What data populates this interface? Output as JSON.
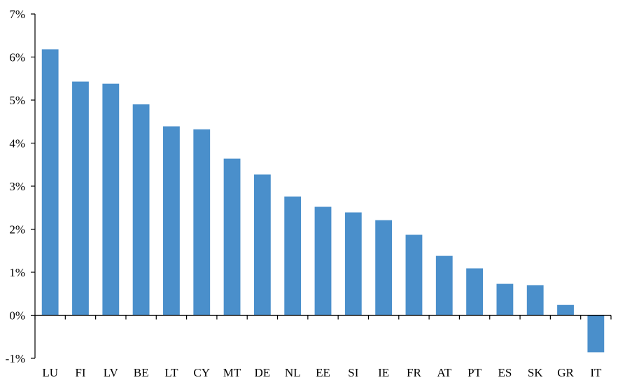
{
  "chart_data": {
    "type": "bar",
    "title": "",
    "xlabel": "",
    "ylabel": "",
    "categories": [
      "LU",
      "FI",
      "LV",
      "BE",
      "LT",
      "CY",
      "MT",
      "DE",
      "NL",
      "EE",
      "SI",
      "IE",
      "FR",
      "AT",
      "PT",
      "ES",
      "SK",
      "GR",
      "IT"
    ],
    "values": [
      6.18,
      5.43,
      5.38,
      4.9,
      4.39,
      4.32,
      3.64,
      3.27,
      2.76,
      2.52,
      2.39,
      2.21,
      1.87,
      1.38,
      1.09,
      0.73,
      0.7,
      0.24,
      -0.86
    ],
    "ylim": [
      -1,
      7
    ],
    "yticks": [
      -1,
      0,
      1,
      2,
      3,
      4,
      5,
      6,
      7
    ],
    "ytick_labels": [
      "-1%",
      "0%",
      "1%",
      "2%",
      "3%",
      "4%",
      "5%",
      "6%",
      "7%"
    ],
    "grid": false,
    "legend": "none",
    "bar_color": "#4a8fcb"
  }
}
